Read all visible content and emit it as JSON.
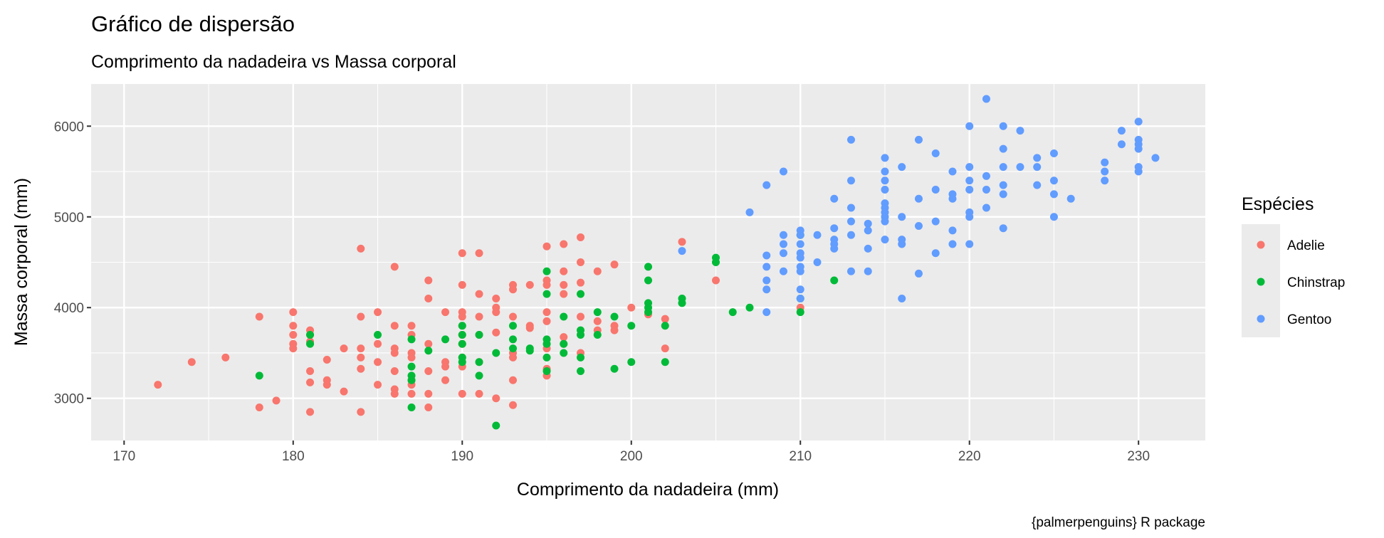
{
  "chart_data": {
    "type": "scatter",
    "title": "Gráfico de dispersão",
    "subtitle": "Comprimento da nadadeira vs Massa corporal",
    "xlabel": "Comprimento da nadadeira (mm)",
    "ylabel": "Massa corporal (mm)",
    "caption": "{palmerpenguins} R package",
    "xlim": [
      168.05,
      233.95
    ],
    "ylim": [
      2535,
      6465
    ],
    "x_ticks": [
      170,
      180,
      190,
      200,
      210,
      220,
      230
    ],
    "x_tick_labels": [
      "170",
      "180",
      "190",
      "200",
      "210",
      "220",
      "230"
    ],
    "y_ticks": [
      3000,
      4000,
      5000,
      6000
    ],
    "y_tick_labels": [
      "3000",
      "4000",
      "5000",
      "6000"
    ],
    "grid": true,
    "panel_background": "#EBEBEB",
    "legend": {
      "title": "Espécies",
      "position": "right"
    },
    "series": [
      {
        "name": "Adelie",
        "color": "#F8766D",
        "points": [
          [
            172,
            3150
          ],
          [
            174,
            3400
          ],
          [
            176,
            3450
          ],
          [
            178,
            3900
          ],
          [
            178,
            2900
          ],
          [
            179,
            2975
          ],
          [
            180,
            3950
          ],
          [
            180,
            3800
          ],
          [
            180,
            3700
          ],
          [
            180,
            3600
          ],
          [
            180,
            3550
          ],
          [
            181,
            3750
          ],
          [
            181,
            3700
          ],
          [
            181,
            3625
          ],
          [
            181,
            3300
          ],
          [
            181,
            3175
          ],
          [
            181,
            2850
          ],
          [
            182,
            3425
          ],
          [
            182,
            3200
          ],
          [
            182,
            3150
          ],
          [
            183,
            3550
          ],
          [
            183,
            3075
          ],
          [
            184,
            4650
          ],
          [
            184,
            3900
          ],
          [
            184,
            3550
          ],
          [
            184,
            3450
          ],
          [
            184,
            3325
          ],
          [
            184,
            2850
          ],
          [
            185,
            3950
          ],
          [
            185,
            3600
          ],
          [
            185,
            3400
          ],
          [
            185,
            3150
          ],
          [
            186,
            4450
          ],
          [
            186,
            3800
          ],
          [
            186,
            3550
          ],
          [
            186,
            3500
          ],
          [
            186,
            3300
          ],
          [
            186,
            3100
          ],
          [
            186,
            3050
          ],
          [
            187,
            3800
          ],
          [
            187,
            3700
          ],
          [
            187,
            3500
          ],
          [
            187,
            3450
          ],
          [
            187,
            3200
          ],
          [
            187,
            3150
          ],
          [
            187,
            3050
          ],
          [
            188,
            4300
          ],
          [
            188,
            4100
          ],
          [
            188,
            3600
          ],
          [
            188,
            3300
          ],
          [
            188,
            3050
          ],
          [
            188,
            2900
          ],
          [
            189,
            3950
          ],
          [
            189,
            3400
          ],
          [
            189,
            3350
          ],
          [
            189,
            3200
          ],
          [
            190,
            4600
          ],
          [
            190,
            4250
          ],
          [
            190,
            3950
          ],
          [
            190,
            3900
          ],
          [
            190,
            3800
          ],
          [
            190,
            3700
          ],
          [
            190,
            3600
          ],
          [
            190,
            3450
          ],
          [
            190,
            3350
          ],
          [
            190,
            3050
          ],
          [
            191,
            4600
          ],
          [
            191,
            4150
          ],
          [
            191,
            3900
          ],
          [
            191,
            3700
          ],
          [
            191,
            3400
          ],
          [
            191,
            3050
          ],
          [
            192,
            4100
          ],
          [
            192,
            4000
          ],
          [
            192,
            3950
          ],
          [
            192,
            3725
          ],
          [
            192,
            3000
          ],
          [
            193,
            4250
          ],
          [
            193,
            4200
          ],
          [
            193,
            3900
          ],
          [
            193,
            3500
          ],
          [
            193,
            3450
          ],
          [
            193,
            3200
          ],
          [
            193,
            2925
          ],
          [
            194,
            4250
          ],
          [
            194,
            3800
          ],
          [
            194,
            3775
          ],
          [
            195,
            4675
          ],
          [
            195,
            4300
          ],
          [
            195,
            4250
          ],
          [
            195,
            3950
          ],
          [
            195,
            3850
          ],
          [
            195,
            3550
          ],
          [
            195,
            3325
          ],
          [
            195,
            3250
          ],
          [
            196,
            4700
          ],
          [
            196,
            4400
          ],
          [
            196,
            4250
          ],
          [
            196,
            4150
          ],
          [
            196,
            3675
          ],
          [
            196,
            3600
          ],
          [
            197,
            4775
          ],
          [
            197,
            4500
          ],
          [
            197,
            4275
          ],
          [
            197,
            3900
          ],
          [
            197,
            3500
          ],
          [
            198,
            4400
          ],
          [
            198,
            3850
          ],
          [
            198,
            3750
          ],
          [
            199,
            4475
          ],
          [
            199,
            3800
          ],
          [
            199,
            3750
          ],
          [
            200,
            4000
          ],
          [
            201,
            3925
          ],
          [
            202,
            3875
          ],
          [
            202,
            3550
          ],
          [
            203,
            4725
          ],
          [
            205,
            4300
          ],
          [
            210,
            4000
          ]
        ]
      },
      {
        "name": "Chinstrap",
        "color": "#00BA38",
        "points": [
          [
            178,
            3250
          ],
          [
            181,
            3700
          ],
          [
            181,
            3600
          ],
          [
            185,
            3700
          ],
          [
            187,
            3650
          ],
          [
            187,
            3350
          ],
          [
            187,
            3250
          ],
          [
            187,
            3200
          ],
          [
            187,
            2900
          ],
          [
            188,
            3525
          ],
          [
            189,
            3650
          ],
          [
            190,
            3800
          ],
          [
            190,
            3700
          ],
          [
            190,
            3600
          ],
          [
            190,
            3450
          ],
          [
            190,
            3400
          ],
          [
            191,
            3700
          ],
          [
            191,
            3400
          ],
          [
            191,
            3250
          ],
          [
            192,
            3500
          ],
          [
            192,
            2700
          ],
          [
            193,
            3800
          ],
          [
            193,
            3650
          ],
          [
            193,
            3550
          ],
          [
            194,
            3550
          ],
          [
            194,
            3525
          ],
          [
            195,
            4400
          ],
          [
            195,
            4150
          ],
          [
            195,
            3650
          ],
          [
            195,
            3600
          ],
          [
            195,
            3450
          ],
          [
            195,
            3300
          ],
          [
            196,
            3900
          ],
          [
            196,
            3600
          ],
          [
            196,
            3500
          ],
          [
            197,
            4150
          ],
          [
            197,
            3750
          ],
          [
            197,
            3700
          ],
          [
            197,
            3450
          ],
          [
            197,
            3300
          ],
          [
            198,
            3950
          ],
          [
            198,
            3700
          ],
          [
            199,
            3900
          ],
          [
            199,
            3325
          ],
          [
            200,
            3800
          ],
          [
            200,
            3400
          ],
          [
            201,
            4450
          ],
          [
            201,
            4300
          ],
          [
            201,
            4050
          ],
          [
            201,
            4000
          ],
          [
            201,
            3950
          ],
          [
            202,
            3800
          ],
          [
            202,
            3400
          ],
          [
            203,
            4100
          ],
          [
            203,
            4050
          ],
          [
            205,
            4550
          ],
          [
            205,
            4500
          ],
          [
            206,
            3950
          ],
          [
            207,
            4000
          ],
          [
            210,
            4800
          ],
          [
            210,
            4100
          ],
          [
            210,
            3950
          ],
          [
            212,
            4300
          ]
        ]
      },
      {
        "name": "Gentoo",
        "color": "#619CFF",
        "points": [
          [
            203,
            4625
          ],
          [
            207,
            5050
          ],
          [
            208,
            5350
          ],
          [
            208,
            4575
          ],
          [
            208,
            4450
          ],
          [
            208,
            4300
          ],
          [
            208,
            4200
          ],
          [
            208,
            3950
          ],
          [
            209,
            5500
          ],
          [
            209,
            4800
          ],
          [
            209,
            4700
          ],
          [
            209,
            4600
          ],
          [
            209,
            4400
          ],
          [
            210,
            4850
          ],
          [
            210,
            4800
          ],
          [
            210,
            4700
          ],
          [
            210,
            4600
          ],
          [
            210,
            4550
          ],
          [
            210,
            4450
          ],
          [
            210,
            4400
          ],
          [
            210,
            4200
          ],
          [
            210,
            4100
          ],
          [
            211,
            4800
          ],
          [
            211,
            4500
          ],
          [
            212,
            5200
          ],
          [
            212,
            4875
          ],
          [
            212,
            4750
          ],
          [
            212,
            4700
          ],
          [
            212,
            4650
          ],
          [
            213,
            5850
          ],
          [
            213,
            5400
          ],
          [
            213,
            5100
          ],
          [
            213,
            4950
          ],
          [
            213,
            4800
          ],
          [
            213,
            4400
          ],
          [
            214,
            4925
          ],
          [
            214,
            4850
          ],
          [
            214,
            4650
          ],
          [
            214,
            4400
          ],
          [
            215,
            5650
          ],
          [
            215,
            5500
          ],
          [
            215,
            5400
          ],
          [
            215,
            5300
          ],
          [
            215,
            5150
          ],
          [
            215,
            5100
          ],
          [
            215,
            5050
          ],
          [
            215,
            5000
          ],
          [
            215,
            4950
          ],
          [
            215,
            4750
          ],
          [
            216,
            5550
          ],
          [
            216,
            5000
          ],
          [
            216,
            4750
          ],
          [
            216,
            4700
          ],
          [
            216,
            4100
          ],
          [
            217,
            5850
          ],
          [
            217,
            5200
          ],
          [
            217,
            4900
          ],
          [
            217,
            4375
          ],
          [
            218,
            5700
          ],
          [
            218,
            5300
          ],
          [
            218,
            4950
          ],
          [
            218,
            4600
          ],
          [
            219,
            5500
          ],
          [
            219,
            5250
          ],
          [
            219,
            5200
          ],
          [
            219,
            4850
          ],
          [
            219,
            4700
          ],
          [
            220,
            6000
          ],
          [
            220,
            5550
          ],
          [
            220,
            5400
          ],
          [
            220,
            5300
          ],
          [
            220,
            5050
          ],
          [
            220,
            5000
          ],
          [
            220,
            4700
          ],
          [
            221,
            6300
          ],
          [
            221,
            5450
          ],
          [
            221,
            5300
          ],
          [
            221,
            5100
          ],
          [
            222,
            6000
          ],
          [
            222,
            5750
          ],
          [
            222,
            5550
          ],
          [
            222,
            5350
          ],
          [
            222,
            5250
          ],
          [
            222,
            4875
          ],
          [
            223,
            5950
          ],
          [
            223,
            5550
          ],
          [
            224,
            5650
          ],
          [
            224,
            5550
          ],
          [
            224,
            5350
          ],
          [
            225,
            5700
          ],
          [
            225,
            5400
          ],
          [
            225,
            5250
          ],
          [
            225,
            5000
          ],
          [
            226,
            5200
          ],
          [
            228,
            5600
          ],
          [
            228,
            5500
          ],
          [
            228,
            5400
          ],
          [
            229,
            5950
          ],
          [
            229,
            5800
          ],
          [
            230,
            6050
          ],
          [
            230,
            5850
          ],
          [
            230,
            5800
          ],
          [
            230,
            5750
          ],
          [
            230,
            5550
          ],
          [
            230,
            5500
          ],
          [
            231,
            5650
          ]
        ]
      }
    ]
  }
}
